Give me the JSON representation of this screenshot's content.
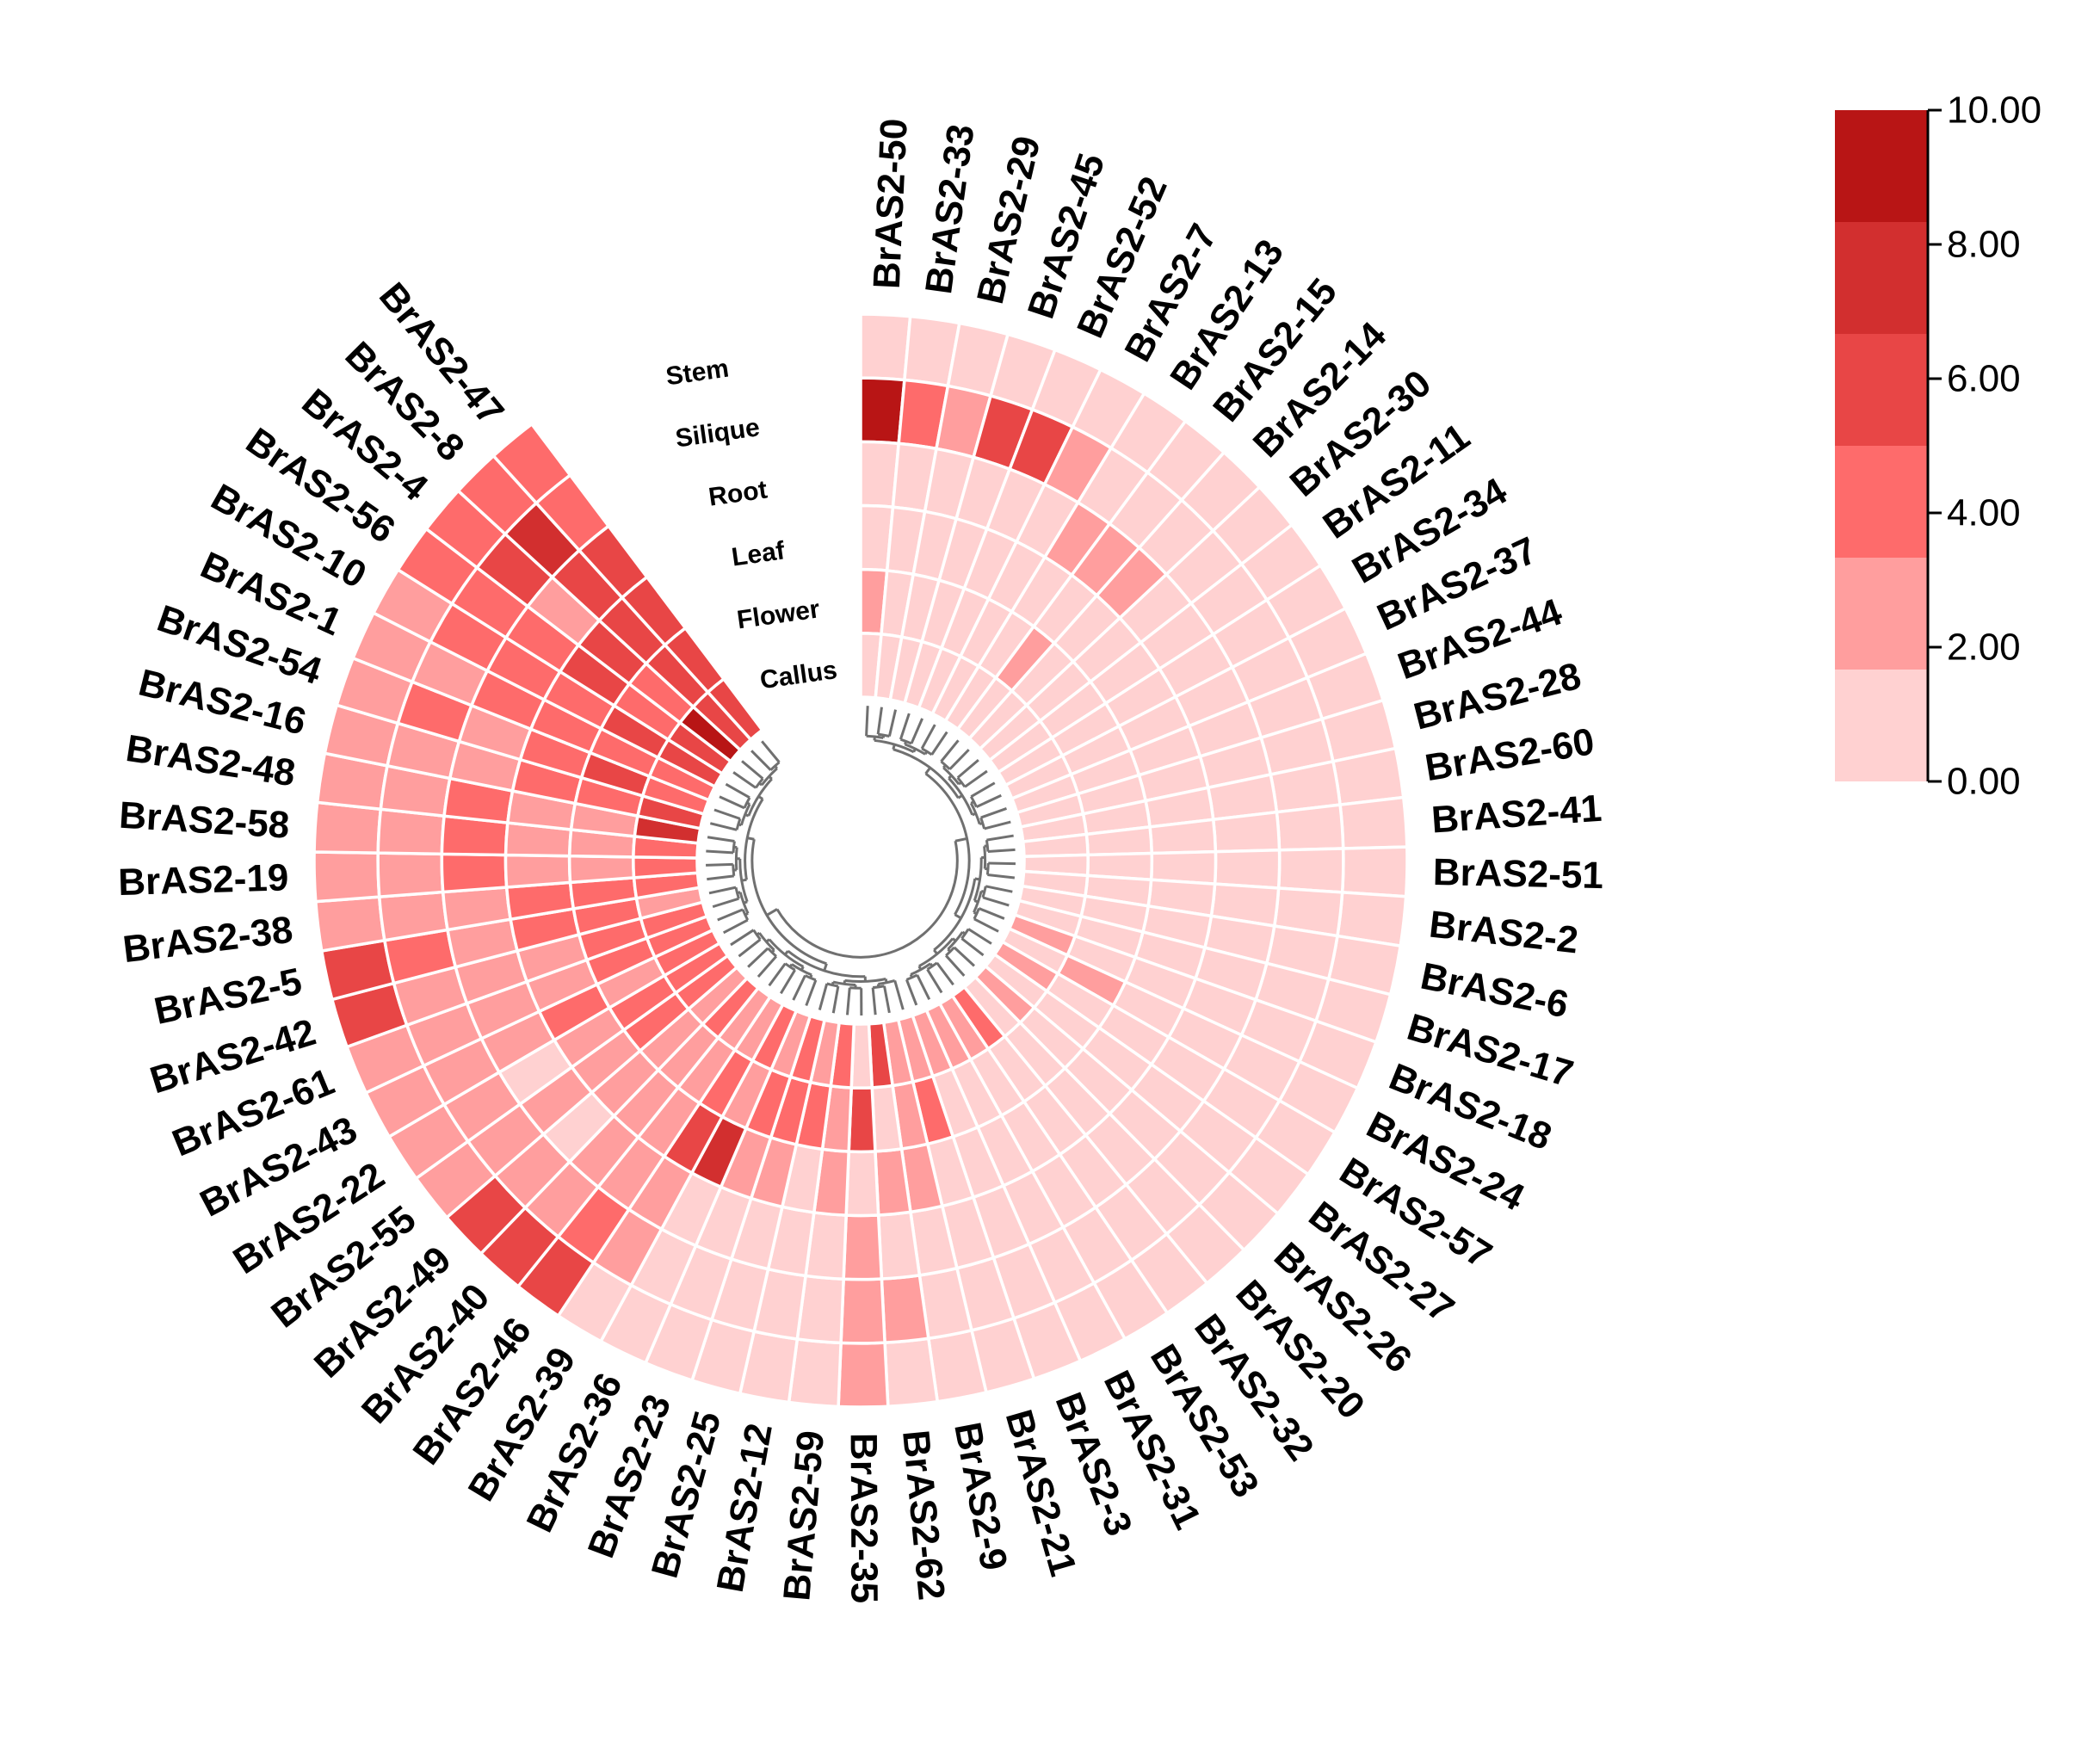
{
  "chart_data": {
    "type": "heatmap",
    "layout": "circular",
    "title": "",
    "tracks_outer_to_inner": [
      "Stem",
      "Silique",
      "Root",
      "Leaf",
      "Flower",
      "Callus"
    ],
    "genes": [
      "BrAS2-50",
      "BrAS2-33",
      "BrAS2-29",
      "BrAS2-45",
      "BrAS2-52",
      "BrAS2-7",
      "BrAS2-13",
      "BrAS2-15",
      "BrAS2-14",
      "BrAS2-30",
      "BrAS2-11",
      "BrAS2-34",
      "BrAS2-37",
      "BrAS2-44",
      "BrAS2-28",
      "BrAS2-60",
      "BrAS2-41",
      "BrAS2-51",
      "BrAS2-2",
      "BrAS2-6",
      "BrAS2-17",
      "BrAS2-18",
      "BrAS2-24",
      "BrAS2-57",
      "BrAS2-27",
      "BrAS2-26",
      "BrAS2-20",
      "BrAS2-32",
      "BrAS2-53",
      "BrAS2-31",
      "BrAS2-3",
      "BrAS2-21",
      "BrAS2-9",
      "BrAS2-62",
      "BrAS2-35",
      "BrAS2-59",
      "BrAS2-12",
      "BrAS2-25",
      "BrAS2-23",
      "BrAS2-36",
      "BrAS2-39",
      "BrAS2-46",
      "BrAS2-40",
      "BrAS2-49",
      "BrAS2-55",
      "BrAS2-22",
      "BrAS2-43",
      "BrAS2-61",
      "BrAS2-42",
      "BrAS2-5",
      "BrAS2-38",
      "BrAS2-19",
      "BrAS2-58",
      "BrAS2-48",
      "BrAS2-16",
      "BrAS2-54",
      "BrAS2-1",
      "BrAS2-10",
      "BrAS2-56",
      "BrAS2-4",
      "BrAS2-8",
      "BrAS2-47"
    ],
    "values": [
      [
        0.3,
        8.5,
        0.4,
        0.5,
        2.0,
        0.5
      ],
      [
        0.3,
        4.5,
        0.4,
        0.4,
        0.4,
        0.3
      ],
      [
        0.3,
        3.0,
        0.4,
        0.4,
        0.4,
        0.3
      ],
      [
        0.3,
        5.5,
        0.4,
        0.4,
        0.4,
        0.3
      ],
      [
        0.3,
        5.5,
        0.4,
        0.4,
        0.4,
        0.3
      ],
      [
        0.3,
        2.0,
        0.4,
        0.4,
        0.4,
        0.3
      ],
      [
        0.3,
        0.5,
        2.5,
        0.4,
        0.4,
        0.3
      ],
      [
        0.3,
        0.5,
        2.0,
        0.4,
        2.5,
        0.3
      ],
      [
        0.3,
        0.4,
        3.0,
        0.4,
        0.4,
        0.3
      ],
      [
        0.3,
        0.4,
        0.4,
        0.4,
        0.4,
        0.3
      ],
      [
        0.3,
        0.4,
        0.4,
        0.4,
        0.4,
        0.3
      ],
      [
        0.3,
        0.4,
        0.4,
        0.4,
        0.4,
        0.3
      ],
      [
        0.3,
        0.4,
        0.4,
        0.4,
        0.4,
        0.3
      ],
      [
        0.3,
        0.4,
        0.4,
        0.4,
        0.4,
        0.3
      ],
      [
        0.3,
        0.4,
        0.4,
        0.4,
        0.4,
        0.3
      ],
      [
        0.3,
        0.4,
        0.4,
        0.4,
        0.4,
        0.3
      ],
      [
        0.3,
        0.4,
        0.4,
        0.4,
        0.4,
        0.3
      ],
      [
        0.3,
        0.4,
        0.4,
        0.4,
        0.4,
        0.3
      ],
      [
        0.3,
        0.4,
        0.4,
        0.4,
        0.4,
        0.3
      ],
      [
        0.3,
        0.4,
        0.4,
        0.4,
        0.4,
        0.3
      ],
      [
        0.3,
        0.4,
        0.4,
        0.4,
        0.4,
        1.5
      ],
      [
        0.3,
        0.4,
        0.4,
        0.4,
        0.4,
        2.0
      ],
      [
        0.3,
        0.4,
        0.4,
        0.4,
        2.5,
        0.5
      ],
      [
        0.3,
        0.4,
        0.4,
        0.4,
        0.4,
        2.0
      ],
      [
        0.3,
        0.4,
        0.4,
        0.4,
        0.4,
        0.5
      ],
      [
        0.3,
        0.4,
        0.4,
        0.4,
        0.4,
        3.0
      ],
      [
        0.3,
        0.4,
        0.4,
        0.4,
        0.4,
        1.5
      ],
      [
        0.3,
        0.4,
        0.4,
        0.4,
        1.0,
        3.5
      ],
      [
        0.3,
        0.4,
        0.4,
        0.4,
        1.5,
        3.0
      ],
      [
        0.3,
        0.4,
        0.4,
        0.4,
        1.0,
        3.0
      ],
      [
        0.3,
        0.4,
        0.4,
        1.5,
        1.0,
        2.0
      ],
      [
        0.3,
        0.4,
        0.4,
        1.5,
        4.0,
        2.5
      ],
      [
        0.3,
        0.4,
        0.4,
        2.0,
        2.0,
        3.0
      ],
      [
        0.5,
        2.0,
        0.5,
        2.0,
        1.5,
        5.0
      ],
      [
        2.5,
        2.5,
        2.0,
        1.5,
        5.0,
        1.5
      ],
      [
        0.5,
        1.5,
        1.0,
        2.5,
        2.0,
        3.5
      ],
      [
        0.5,
        0.8,
        1.5,
        1.5,
        4.5,
        2.0
      ],
      [
        0.5,
        0.8,
        1.5,
        2.0,
        3.5,
        3.5
      ],
      [
        0.8,
        0.8,
        1.5,
        2.0,
        3.5,
        2.5
      ],
      [
        0.8,
        0.8,
        1.5,
        7.0,
        2.5,
        3.5
      ],
      [
        0.8,
        2.5,
        2.0,
        6.5,
        3.5,
        2.0
      ],
      [
        5.0,
        3.5,
        2.0,
        2.5,
        2.0,
        2.5
      ],
      [
        6.0,
        3.0,
        2.0,
        2.5,
        2.5,
        4.0
      ],
      [
        5.5,
        2.5,
        1.5,
        2.0,
        2.5,
        3.0
      ],
      [
        3.0,
        2.5,
        2.0,
        2.5,
        4.0,
        3.5
      ],
      [
        2.5,
        2.0,
        1.5,
        2.5,
        3.5,
        3.5
      ],
      [
        2.5,
        2.0,
        3.0,
        3.5,
        3.0,
        4.5
      ],
      [
        3.0,
        2.5,
        2.5,
        3.0,
        4.5,
        4.0
      ],
      [
        5.0,
        3.0,
        2.0,
        3.0,
        3.5,
        4.0
      ],
      [
        5.5,
        3.5,
        2.5,
        3.5,
        4.0,
        3.0
      ],
      [
        2.5,
        2.5,
        2.0,
        4.0,
        3.5,
        3.5
      ],
      [
        3.0,
        2.5,
        4.5,
        2.5,
        3.0,
        4.0
      ],
      [
        3.0,
        2.0,
        4.0,
        2.5,
        3.0,
        4.0
      ],
      [
        2.0,
        3.0,
        3.5,
        2.5,
        3.0,
        7.5
      ],
      [
        2.5,
        3.0,
        3.0,
        3.5,
        4.0,
        6.5
      ],
      [
        3.0,
        4.5,
        3.0,
        4.0,
        5.0,
        4.0
      ],
      [
        2.5,
        3.0,
        3.5,
        4.5,
        3.5,
        4.0
      ],
      [
        3.0,
        4.0,
        4.5,
        4.0,
        5.0,
        5.0
      ],
      [
        4.0,
        4.0,
        3.5,
        5.5,
        4.5,
        6.0
      ],
      [
        3.5,
        6.5,
        3.0,
        5.0,
        4.0,
        9.0
      ],
      [
        4.5,
        7.0,
        6.0,
        6.0,
        5.5,
        6.0
      ],
      [
        3.5,
        4.0,
        6.0,
        5.5,
        5.0,
        6.5
      ]
    ],
    "color_scale": {
      "min": 0.0,
      "max": 10.0,
      "ticks": [
        "0.00",
        "2.00",
        "4.00",
        "6.00",
        "8.00",
        "10.00"
      ],
      "colors": [
        "#ffd1d1",
        "#ff9e9e",
        "#fe6b6b",
        "#e84646",
        "#d22f2f",
        "#b81515"
      ]
    },
    "tree_color": "#707070",
    "legend_placement": "top-right"
  }
}
